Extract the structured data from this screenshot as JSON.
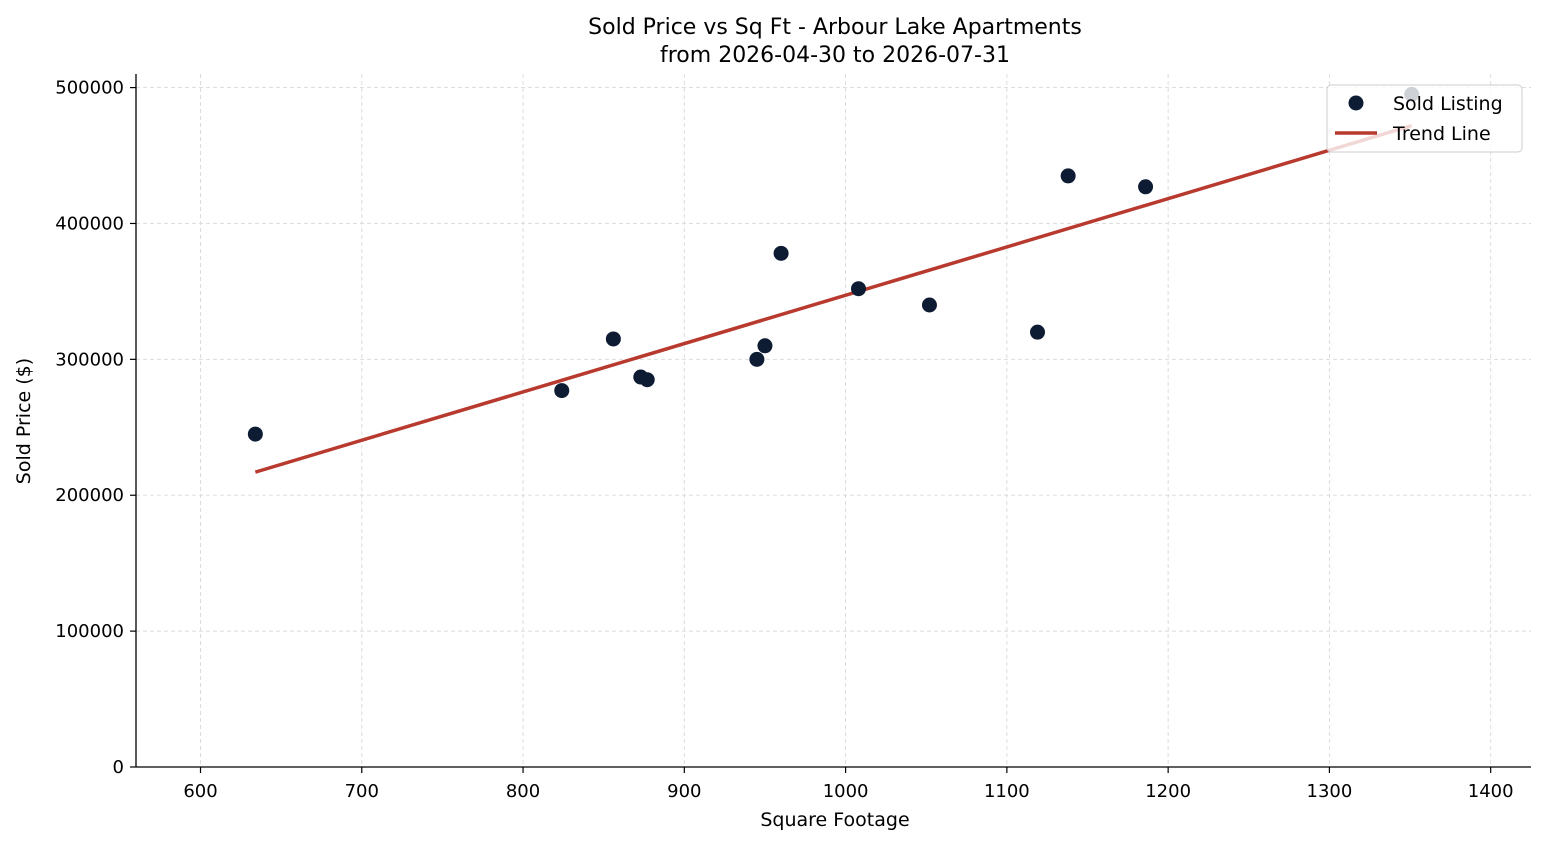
{
  "chart_data": {
    "type": "scatter",
    "title": "Sold Price vs Sq Ft - Arbour Lake Apartments",
    "subtitle": "from 2026-04-30 to 2026-07-31",
    "xlabel": "Square Footage",
    "ylabel": "Sold Price ($)",
    "xlim": [
      560,
      1425
    ],
    "ylim": [
      0,
      510000
    ],
    "xticks": [
      600,
      700,
      800,
      900,
      1000,
      1100,
      1200,
      1300,
      1400
    ],
    "yticks": [
      0,
      100000,
      200000,
      300000,
      400000,
      500000
    ],
    "grid": true,
    "legend_position": "top-right",
    "series": [
      {
        "name": "Sold Listing",
        "kind": "scatter",
        "color": "#0d1b33",
        "points": [
          {
            "x": 634,
            "y": 245000
          },
          {
            "x": 824,
            "y": 277000
          },
          {
            "x": 856,
            "y": 315000
          },
          {
            "x": 873,
            "y": 287000
          },
          {
            "x": 877,
            "y": 285000
          },
          {
            "x": 945,
            "y": 300000
          },
          {
            "x": 950,
            "y": 310000
          },
          {
            "x": 960,
            "y": 378000
          },
          {
            "x": 1008,
            "y": 352000
          },
          {
            "x": 1052,
            "y": 340000
          },
          {
            "x": 1119,
            "y": 320000
          },
          {
            "x": 1138,
            "y": 435000
          },
          {
            "x": 1186,
            "y": 427000
          },
          {
            "x": 1351,
            "y": 495000
          }
        ]
      },
      {
        "name": "Trend Line",
        "kind": "line",
        "color": "#b83a2e",
        "points": [
          {
            "x": 634,
            "y": 217000
          },
          {
            "x": 1351,
            "y": 472000
          }
        ]
      }
    ]
  }
}
